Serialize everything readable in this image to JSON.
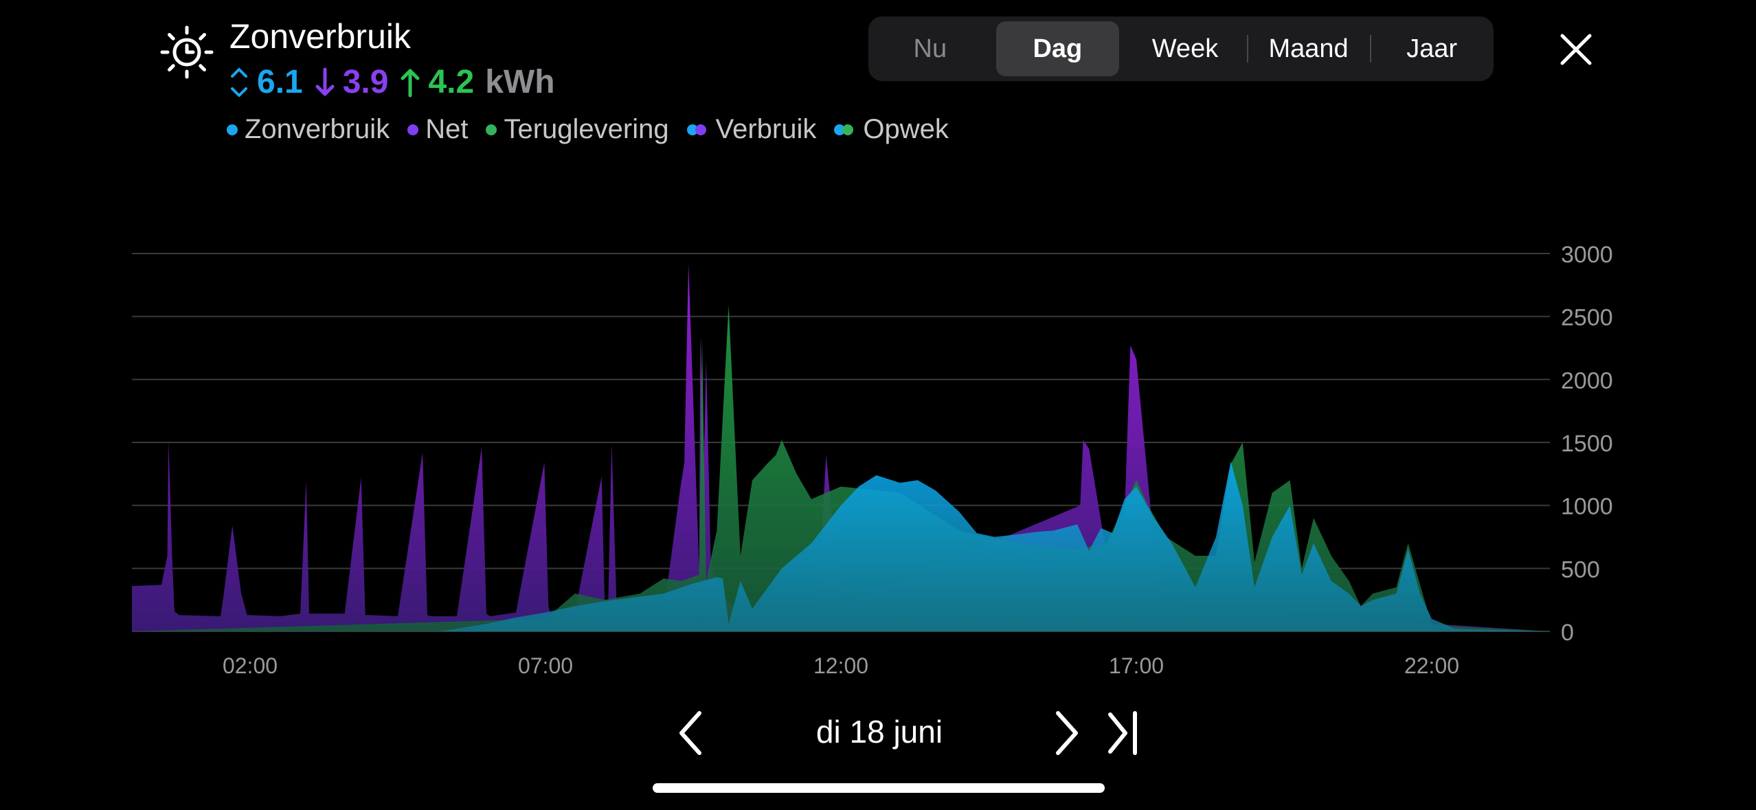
{
  "header": {
    "title": "Zonverbruik",
    "totals": {
      "solar_value": "6.1",
      "grid_value": "3.9",
      "return_value": "4.2",
      "unit": "kWh"
    },
    "colors": {
      "solar": "#1aa7f0",
      "grid": "#8a3ff0",
      "return": "#2bc452",
      "unit": "#8e8e93"
    }
  },
  "legend": {
    "items": [
      {
        "label": "Zonverbruik",
        "color": "#1aa7f0"
      },
      {
        "label": "Net",
        "color": "#7e3ff2"
      },
      {
        "label": "Teruglevering",
        "color": "#34b35a"
      },
      {
        "label": "Verbruik",
        "colors": [
          "#1aa7f0",
          "#7e3ff2"
        ]
      },
      {
        "label": "Opwek",
        "colors": [
          "#1aa7f0",
          "#34b35a"
        ]
      }
    ]
  },
  "tabs": [
    {
      "label": "Nu",
      "state": "disabled"
    },
    {
      "label": "Dag",
      "state": "active"
    },
    {
      "label": "Week",
      "state": "normal"
    },
    {
      "label": "Maand",
      "state": "normal"
    },
    {
      "label": "Jaar",
      "state": "normal"
    }
  ],
  "navigation": {
    "date_label": "di 18 juni"
  },
  "chart_data": {
    "type": "area",
    "ylim": [
      0,
      3000
    ],
    "xlim": [
      0,
      24
    ],
    "y_ticks": [
      0,
      500,
      1000,
      1500,
      2000,
      2500,
      3000
    ],
    "x_ticks": [
      {
        "value": 2,
        "label": "02:00"
      },
      {
        "value": 7,
        "label": "07:00"
      },
      {
        "value": 12,
        "label": "12:00"
      },
      {
        "value": 17,
        "label": "17:00"
      },
      {
        "value": 22,
        "label": "22:00"
      }
    ],
    "grid": true,
    "series": [
      {
        "name": "Net",
        "color": "#7e3ff2",
        "x": [
          0,
          0.5,
          0.6,
          0.62,
          0.68,
          0.72,
          0.8,
          1.5,
          1.55,
          1.7,
          1.85,
          1.95,
          2,
          2.5,
          2.85,
          2.95,
          3,
          3.6,
          3.88,
          3.95,
          4.02,
          4.5,
          4.92,
          5,
          5.06,
          5.5,
          5.92,
          6,
          6.06,
          6.5,
          6.98,
          7.05,
          7.12,
          7.5,
          7.95,
          8,
          8.06,
          8.12,
          8.2,
          8.28,
          8.35,
          8.5,
          8.6,
          9,
          9.28,
          9.35,
          9.42,
          9.6,
          9.62,
          9.68,
          9.72,
          9.8,
          10,
          10.4,
          11.6,
          11.75,
          12,
          16.05,
          16.1,
          16.2,
          16.5,
          16.8,
          16.9,
          17,
          17.4,
          24
        ],
        "values": [
          360,
          370,
          600,
          1510,
          600,
          160,
          130,
          120,
          280,
          840,
          300,
          130,
          130,
          120,
          140,
          1200,
          140,
          140,
          1220,
          130,
          130,
          120,
          1420,
          130,
          120,
          120,
          1460,
          140,
          120,
          150,
          1340,
          200,
          100,
          160,
          1230,
          260,
          200,
          1490,
          260,
          230,
          200,
          140,
          140,
          150,
          1130,
          1340,
          2920,
          500,
          2350,
          1320,
          2150,
          500,
          260,
          150,
          140,
          1400,
          200,
          1000,
          1520,
          1450,
          600,
          900,
          2270,
          2160,
          200,
          0
        ]
      },
      {
        "name": "Teruglevering",
        "color": "#34b35a",
        "x": [
          0,
          7,
          7.5,
          8,
          8.6,
          9,
          9.3,
          9.6,
          9.65,
          9.72,
          9.9,
          10.1,
          10.3,
          10.5,
          10.75,
          10.9,
          11,
          11.25,
          11.5,
          12,
          13,
          14,
          15,
          16,
          16.5,
          17,
          17.2,
          17.5,
          18,
          18.35,
          18.6,
          18.8,
          19,
          19.3,
          19.6,
          19.8,
          20,
          20.3,
          20.6,
          20.8,
          21,
          21.4,
          21.6,
          22,
          24
        ],
        "values": [
          0,
          100,
          300,
          250,
          300,
          420,
          400,
          450,
          2330,
          400,
          800,
          2590,
          600,
          1200,
          1330,
          1400,
          1520,
          1250,
          1050,
          1150,
          1100,
          800,
          700,
          650,
          700,
          1200,
          1000,
          750,
          600,
          600,
          1330,
          1500,
          550,
          1100,
          1200,
          500,
          900,
          600,
          400,
          200,
          300,
          350,
          700,
          50,
          0
        ]
      },
      {
        "name": "Zonverbruik",
        "color": "#1aa7f0",
        "x": [
          0,
          5.2,
          5.5,
          6,
          6.5,
          7,
          7.5,
          8,
          8.5,
          9,
          9.5,
          9.9,
          10,
          10.1,
          10.3,
          10.5,
          11,
          11.5,
          12,
          12.3,
          12.6,
          13,
          13.3,
          13.6,
          14,
          14.3,
          14.6,
          15,
          15.3,
          15.6,
          16,
          16.2,
          16.4,
          16.6,
          16.8,
          17,
          17.3,
          17.6,
          18,
          18.35,
          18.6,
          18.8,
          19,
          19.3,
          19.6,
          19.8,
          20,
          20.3,
          20.6,
          20.8,
          21,
          21.4,
          21.6,
          21.8,
          22,
          22.4,
          24
        ],
        "values": [
          0,
          0,
          20,
          60,
          110,
          150,
          200,
          240,
          270,
          300,
          380,
          430,
          420,
          60,
          400,
          180,
          500,
          700,
          1000,
          1150,
          1240,
          1180,
          1200,
          1120,
          950,
          780,
          750,
          770,
          790,
          800,
          850,
          640,
          820,
          780,
          1050,
          1150,
          900,
          700,
          350,
          750,
          1350,
          1000,
          350,
          750,
          1000,
          450,
          700,
          400,
          300,
          200,
          250,
          300,
          650,
          300,
          100,
          20,
          0
        ]
      }
    ]
  }
}
